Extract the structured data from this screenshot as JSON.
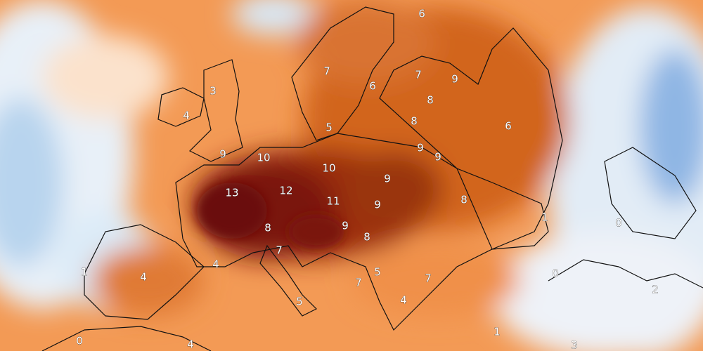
{
  "labels": [
    6,
    7,
    6,
    7,
    9,
    3,
    8,
    4,
    8,
    5,
    6,
    9,
    10,
    9,
    9,
    10,
    9,
    13,
    12,
    11,
    9,
    8,
    1,
    0,
    8,
    9,
    8,
    7,
    4,
    1,
    4,
    0,
    5,
    7,
    7,
    2,
    5,
    4,
    1,
    0,
    4,
    3
  ]
}
